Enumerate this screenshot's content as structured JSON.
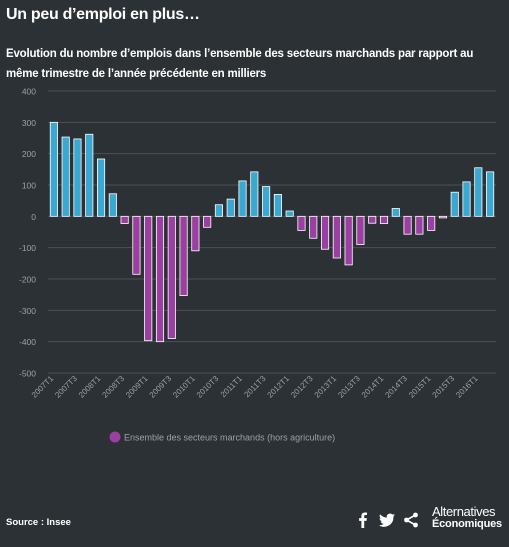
{
  "header": {
    "title": "Un peu d’emploi en plus…",
    "subtitle": "Evolution du nombre d’emplois dans l’ensemble des secteurs marchands par rapport au même trimestre de l’année précédente en milliers"
  },
  "footer": {
    "source": "Source : Insee",
    "brand_line1": "Alternatives",
    "brand_line2": "Économiques",
    "share_icons": [
      "facebook-icon",
      "twitter-icon",
      "share-icon"
    ]
  },
  "colors": {
    "background": "#2b3134",
    "positive": "#3aa8d0",
    "negative": "#9b3fa2",
    "grid": "#4a5256",
    "text": "#ffffff",
    "axis_text": "#9aa3a8"
  },
  "chart_data": {
    "type": "bar",
    "ylim": [
      -500,
      400
    ],
    "yticks": [
      400,
      300,
      200,
      100,
      0,
      -100,
      -200,
      -300,
      -400,
      -500
    ],
    "grid": true,
    "legend": {
      "position": "bottom-center",
      "label": "Ensemble des secteurs marchands (hors agriculture)"
    },
    "tick_labels": [
      "2007T1",
      "2007T3",
      "2008T1",
      "2008T3",
      "2009T1",
      "2009T3",
      "2010T1",
      "2010T3",
      "2011T1",
      "2011T3",
      "2012T1",
      "2012T3",
      "2013T1",
      "2013T3",
      "2014T1",
      "2014T3",
      "2015T1",
      "2015T3",
      "2016T1"
    ],
    "categories": [
      "2007T1",
      "2007T2",
      "2007T3",
      "2007T4",
      "2008T1",
      "2008T2",
      "2008T3",
      "2008T4",
      "2009T1",
      "2009T2",
      "2009T3",
      "2009T4",
      "2010T1",
      "2010T2",
      "2010T3",
      "2010T4",
      "2011T1",
      "2011T2",
      "2011T3",
      "2011T4",
      "2012T1",
      "2012T2",
      "2012T3",
      "2012T4",
      "2013T1",
      "2013T2",
      "2013T3",
      "2013T4",
      "2014T1",
      "2014T2",
      "2014T3",
      "2014T4",
      "2015T1",
      "2015T2",
      "2015T3",
      "2015T4",
      "2016T1",
      "2016T2"
    ],
    "values": [
      300,
      253,
      247,
      262,
      183,
      72,
      -23,
      -185,
      -397,
      -400,
      -390,
      -253,
      -110,
      -35,
      37,
      55,
      113,
      142,
      95,
      70,
      17,
      -45,
      -70,
      -105,
      -133,
      -155,
      -90,
      -22,
      -23,
      25,
      -57,
      -57,
      -45,
      -5,
      77,
      110,
      155,
      142
    ]
  }
}
